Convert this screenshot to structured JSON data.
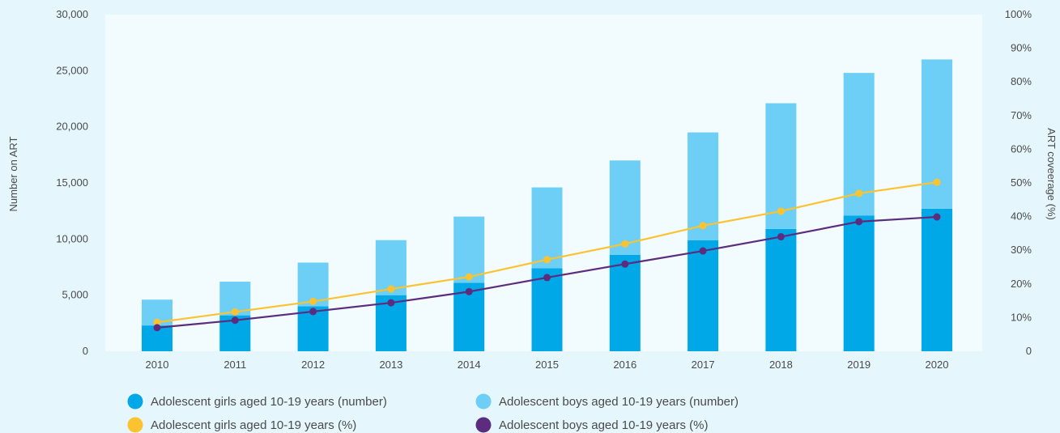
{
  "chart_data": {
    "type": "bar",
    "categories": [
      "2010",
      "2011",
      "2012",
      "2013",
      "2014",
      "2015",
      "2016",
      "2017",
      "2018",
      "2019",
      "2020"
    ],
    "series": [
      {
        "name": "Adolescent girls aged 10-19 years (number)",
        "kind": "stacked-bar",
        "axis": "left",
        "color": "#00a8e8",
        "values": [
          2300,
          3200,
          4000,
          5000,
          6100,
          7400,
          8600,
          9900,
          10900,
          12100,
          12700
        ]
      },
      {
        "name": "Adolescent boys aged 10-19 years (number)",
        "kind": "stacked-bar",
        "axis": "left",
        "color": "#6dcff6",
        "values": [
          2300,
          3000,
          3900,
          4900,
          5900,
          7200,
          8400,
          9600,
          11200,
          12700,
          13300
        ]
      },
      {
        "name": "Adolescent girls aged 10-19 years (%)",
        "kind": "line",
        "axis": "right",
        "color": "#fcc330",
        "values": [
          8.6,
          11.7,
          14.8,
          18.5,
          22.1,
          27.2,
          31.9,
          37.3,
          41.6,
          46.9,
          50.2
        ]
      },
      {
        "name": "Adolescent boys aged 10-19 years (%)",
        "kind": "line",
        "axis": "right",
        "color": "#5c2d7f",
        "values": [
          7.0,
          9.2,
          11.8,
          14.4,
          17.7,
          21.9,
          25.9,
          29.8,
          34.0,
          38.5,
          39.9
        ]
      }
    ],
    "ylabel": "Number on ART",
    "y2label": "ART coveerage (%)",
    "ylim": [
      0,
      30000
    ],
    "y2lim": [
      0,
      100
    ],
    "yticks": [
      "0",
      "5,000",
      "10,000",
      "15,000",
      "20,000",
      "25,000",
      "30,000"
    ],
    "y2ticks": [
      "0",
      "10%",
      "20%",
      "30%",
      "40%",
      "50%",
      "60%",
      "70%",
      "80%",
      "90%",
      "100%"
    ],
    "grid": false,
    "legend_position": "bottom"
  }
}
